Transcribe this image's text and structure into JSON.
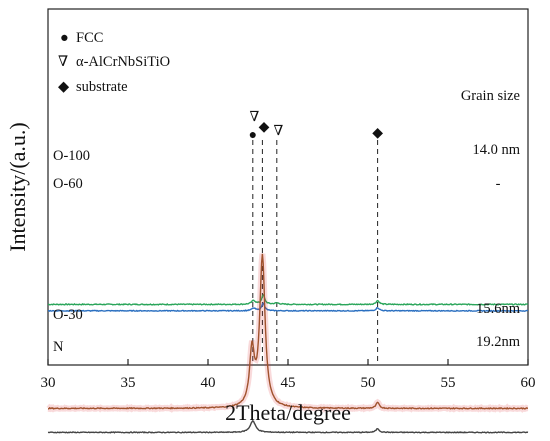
{
  "chart_data": {
    "type": "line",
    "xlabel": "2Theta/degree",
    "ylabel": "Intensity/(a.u.)",
    "xlim": [
      30,
      60
    ],
    "xticks": [
      "30",
      "35",
      "40",
      "45",
      "50",
      "55",
      "60"
    ],
    "legend": {
      "placement": "top-left",
      "items": [
        {
          "symbol": "●",
          "label": "FCC"
        },
        {
          "symbol": "∇",
          "label": "α-AlCrNbSiTiO"
        },
        {
          "symbol": "◆",
          "label": "substrate"
        }
      ]
    },
    "grain_size_header": "Grain size",
    "reference_lines_x": [
      42.8,
      43.4,
      44.3,
      50.6
    ],
    "peak_markers": [
      {
        "symbol": "●",
        "x": 42.8
      },
      {
        "symbol": "∇",
        "x": 42.9
      },
      {
        "symbol": "◆",
        "x": 43.5
      },
      {
        "symbol": "∇",
        "x": 44.4
      },
      {
        "symbol": "◆",
        "x": 50.6
      }
    ],
    "series": [
      {
        "name": "O-100",
        "grain_size": "14.0 nm",
        "color": "#2aa55a",
        "baseline": 0.8,
        "noise": 0.03,
        "peaks": [
          {
            "x": 42.85,
            "height": 0.12,
            "width": 0.15
          },
          {
            "x": 43.45,
            "height": 0.28,
            "width": 0.12
          },
          {
            "x": 44.3,
            "height": 0.04,
            "width": 0.2
          },
          {
            "x": 50.6,
            "height": 0.12,
            "width": 0.12
          }
        ]
      },
      {
        "name": "O-60",
        "grain_size": "-",
        "color": "#2a6fc0",
        "baseline": 0.6,
        "noise": 0.025,
        "peaks": [
          {
            "x": 42.85,
            "height": 0.08,
            "width": 0.15
          },
          {
            "x": 43.45,
            "height": 0.24,
            "width": 0.11
          },
          {
            "x": 50.6,
            "height": 0.1,
            "width": 0.12
          }
        ]
      },
      {
        "name": "O-30",
        "grain_size": "15.6nm",
        "color": "#a0522d",
        "highlight_color": "#e0303a",
        "baseline": -2.45,
        "noise": 0.03,
        "peaks": [
          {
            "x": 42.75,
            "height": 1.7,
            "width": 0.18
          },
          {
            "x": 43.4,
            "height": 4.7,
            "width": 0.2
          },
          {
            "x": 50.6,
            "height": 0.18,
            "width": 0.12
          }
        ]
      },
      {
        "name": "N",
        "grain_size": "19.2nm",
        "color": "#444444",
        "baseline": -3.2,
        "noise": 0.025,
        "peaks": [
          {
            "x": 42.8,
            "height": 0.36,
            "width": 0.2
          },
          {
            "x": 50.6,
            "height": 0.12,
            "width": 0.12
          }
        ]
      }
    ]
  }
}
